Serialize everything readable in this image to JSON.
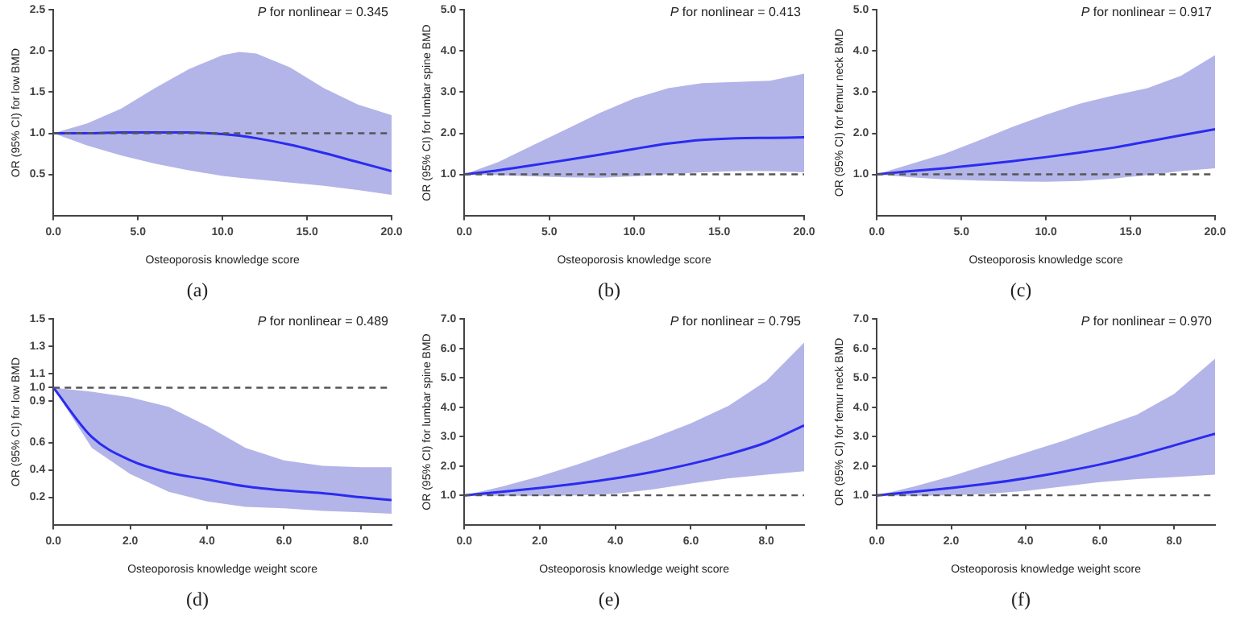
{
  "chart_data": [
    {
      "type": "line",
      "title": "(a)",
      "xlabel": "Osteoporosis knowledge score",
      "ylabel": "OR (95% CI) for low BMD",
      "annotations": [
        "P for nonlinear = 0.345"
      ],
      "xlim": [
        0,
        20
      ],
      "xticks": [
        {
          "value": 0,
          "label": "0.0"
        },
        {
          "value": 5,
          "label": "5.0"
        },
        {
          "value": 10,
          "label": "10.0"
        },
        {
          "value": 15,
          "label": "15.0"
        },
        {
          "value": 20,
          "label": "20.0"
        }
      ],
      "ylim": [
        0,
        2.5
      ],
      "yticks": [
        0.5,
        {
          "value": 1,
          "label": "1.0"
        },
        1.5,
        {
          "value": 2,
          "label": "2.0"
        },
        2.5
      ],
      "grid": false,
      "legend": false,
      "ref_lines": [
        {
          "axis": "y",
          "value": 1,
          "color": "#555555",
          "line_style": "dashed"
        }
      ],
      "series": [
        {
          "color": "#2b2bf2",
          "x": [
            0,
            2,
            4,
            6,
            8,
            10,
            11,
            12,
            14,
            16,
            18,
            20
          ],
          "values": [
            1.0,
            1.0,
            1.01,
            1.01,
            1.01,
            0.99,
            0.97,
            0.94,
            0.86,
            0.76,
            0.65,
            0.54
          ],
          "lower": [
            1.0,
            0.85,
            0.73,
            0.63,
            0.55,
            0.48,
            0.46,
            0.44,
            0.4,
            0.36,
            0.31,
            0.25
          ],
          "upper": [
            1.0,
            1.12,
            1.3,
            1.55,
            1.78,
            1.95,
            1.99,
            1.97,
            1.8,
            1.55,
            1.35,
            1.22
          ]
        }
      ]
    },
    {
      "type": "line",
      "title": "(b)",
      "xlabel": "Osteoporosis knowledge score",
      "ylabel": "OR (95% CI) for lumbar spine BMD",
      "annotations": [
        "P for nonlinear = 0.413"
      ],
      "xlim": [
        0,
        20
      ],
      "xticks": [
        {
          "value": 0,
          "label": "0.0"
        },
        {
          "value": 5,
          "label": "5.0"
        },
        {
          "value": 10,
          "label": "10.0"
        },
        {
          "value": 15,
          "label": "15.0"
        },
        {
          "value": 20,
          "label": "20.0"
        }
      ],
      "ylim": [
        0,
        5
      ],
      "yticks": [
        {
          "value": 1,
          "label": "1.0"
        },
        {
          "value": 2,
          "label": "2.0"
        },
        {
          "value": 3,
          "label": "3.0"
        },
        {
          "value": 4,
          "label": "4.0"
        },
        {
          "value": 5,
          "label": "5.0"
        }
      ],
      "grid": false,
      "legend": false,
      "ref_lines": [
        {
          "axis": "y",
          "value": 1,
          "color": "#555555",
          "line_style": "dashed"
        }
      ],
      "series": [
        {
          "color": "#2b2bf2",
          "x": [
            0,
            2,
            4,
            6,
            8,
            10,
            12,
            14,
            16,
            18,
            20
          ],
          "values": [
            1.0,
            1.1,
            1.22,
            1.35,
            1.48,
            1.62,
            1.75,
            1.84,
            1.88,
            1.89,
            1.9
          ],
          "lower": [
            1.0,
            0.98,
            0.95,
            0.93,
            0.92,
            0.95,
            1.0,
            1.05,
            1.08,
            1.08,
            1.05
          ],
          "upper": [
            1.0,
            1.3,
            1.7,
            2.1,
            2.5,
            2.85,
            3.1,
            3.22,
            3.25,
            3.28,
            3.45
          ]
        }
      ]
    },
    {
      "type": "line",
      "title": "(c)",
      "xlabel": "Osteoporosis knowledge score",
      "ylabel": "OR (95% CI) for femur neck BMD",
      "annotations": [
        "P for nonlinear = 0.917"
      ],
      "xlim": [
        0,
        20
      ],
      "xticks": [
        {
          "value": 0,
          "label": "0.0"
        },
        {
          "value": 5,
          "label": "5.0"
        },
        {
          "value": 10,
          "label": "10.0"
        },
        {
          "value": 15,
          "label": "15.0"
        },
        {
          "value": 20,
          "label": "20.0"
        }
      ],
      "ylim": [
        0,
        5
      ],
      "yticks": [
        {
          "value": 1,
          "label": "1.0"
        },
        {
          "value": 2,
          "label": "2.0"
        },
        {
          "value": 3,
          "label": "3.0"
        },
        {
          "value": 4,
          "label": "4.0"
        },
        {
          "value": 5,
          "label": "5.0"
        }
      ],
      "grid": false,
      "legend": false,
      "ref_lines": [
        {
          "axis": "y",
          "value": 1,
          "color": "#555555",
          "line_style": "dashed"
        }
      ],
      "series": [
        {
          "color": "#2b2bf2",
          "x": [
            0,
            2,
            4,
            6,
            8,
            10,
            12,
            14,
            16,
            18,
            20
          ],
          "values": [
            1.0,
            1.08,
            1.15,
            1.23,
            1.32,
            1.42,
            1.53,
            1.65,
            1.8,
            1.95,
            2.1
          ],
          "lower": [
            1.0,
            0.93,
            0.88,
            0.85,
            0.83,
            0.82,
            0.84,
            0.9,
            0.98,
            1.08,
            1.15
          ],
          "upper": [
            1.0,
            1.25,
            1.5,
            1.82,
            2.15,
            2.45,
            2.72,
            2.92,
            3.1,
            3.4,
            3.9
          ]
        }
      ]
    },
    {
      "type": "line",
      "title": "(d)",
      "xlabel": "Osteoporosis knowledge weight score",
      "ylabel": "OR (95% CI) for low BMD",
      "annotations": [
        "P for nonlinear = 0.489"
      ],
      "xlim": [
        0,
        8.8
      ],
      "xticks": [
        {
          "value": 0,
          "label": "0.0"
        },
        {
          "value": 2,
          "label": "2.0"
        },
        {
          "value": 4,
          "label": "4.0"
        },
        {
          "value": 6,
          "label": "6.0"
        },
        {
          "value": 8,
          "label": "8.0"
        }
      ],
      "ylim": [
        0,
        1.5
      ],
      "yticks": [
        0.2,
        0.4,
        0.6,
        0.9,
        {
          "value": 1,
          "label": "1.0"
        },
        1.1,
        1.3,
        1.5
      ],
      "grid": false,
      "legend": false,
      "ref_lines": [
        {
          "axis": "y",
          "value": 1,
          "color": "#555555",
          "line_style": "dashed"
        }
      ],
      "series": [
        {
          "color": "#2b2bf2",
          "x": [
            0,
            1,
            2,
            3,
            4,
            5,
            6,
            7,
            8,
            8.8
          ],
          "values": [
            1.0,
            0.64,
            0.47,
            0.38,
            0.33,
            0.28,
            0.25,
            0.23,
            0.2,
            0.18
          ],
          "lower": [
            1.0,
            0.56,
            0.37,
            0.24,
            0.17,
            0.13,
            0.12,
            0.1,
            0.09,
            0.08
          ],
          "upper": [
            1.0,
            0.97,
            0.93,
            0.86,
            0.72,
            0.56,
            0.47,
            0.43,
            0.42,
            0.42
          ]
        }
      ]
    },
    {
      "type": "line",
      "title": "(e)",
      "xlabel": "Osteoporosis knowledge weight score",
      "ylabel": "OR (95% CI) for lumbar spine BMD",
      "annotations": [
        "P for nonlinear = 0.795"
      ],
      "xlim": [
        0,
        9
      ],
      "xticks": [
        {
          "value": 0,
          "label": "0.0"
        },
        {
          "value": 2,
          "label": "2.0"
        },
        {
          "value": 4,
          "label": "4.0"
        },
        {
          "value": 6,
          "label": "6.0"
        },
        {
          "value": 8,
          "label": "8.0"
        }
      ],
      "ylim": [
        0,
        7
      ],
      "yticks": [
        {
          "value": 1,
          "label": "1.0"
        },
        {
          "value": 2,
          "label": "2.0"
        },
        {
          "value": 3,
          "label": "3.0"
        },
        {
          "value": 4,
          "label": "4.0"
        },
        {
          "value": 5,
          "label": "5.0"
        },
        {
          "value": 6,
          "label": "6.0"
        },
        {
          "value": 7,
          "label": "7.0"
        }
      ],
      "grid": false,
      "legend": false,
      "ref_lines": [
        {
          "axis": "y",
          "value": 1,
          "color": "#555555",
          "line_style": "dashed"
        }
      ],
      "series": [
        {
          "color": "#2b2bf2",
          "x": [
            0,
            1,
            2,
            3,
            4,
            5,
            6,
            7,
            8,
            9
          ],
          "values": [
            1.0,
            1.12,
            1.25,
            1.4,
            1.58,
            1.8,
            2.07,
            2.4,
            2.8,
            3.38
          ],
          "lower": [
            1.0,
            0.98,
            0.98,
            1.0,
            1.05,
            1.2,
            1.4,
            1.58,
            1.7,
            1.82
          ],
          "upper": [
            1.0,
            1.3,
            1.65,
            2.05,
            2.5,
            2.95,
            3.45,
            4.05,
            4.9,
            6.2
          ]
        }
      ]
    },
    {
      "type": "line",
      "title": "(f)",
      "xlabel": "Osteoporosis knowledge weight score",
      "ylabel": "OR (95% CI) for femur neck BMD",
      "annotations": [
        "P for nonlinear = 0.970"
      ],
      "xlim": [
        0,
        9.1
      ],
      "xticks": [
        {
          "value": 0,
          "label": "0.0"
        },
        {
          "value": 2,
          "label": "2.0"
        },
        {
          "value": 4,
          "label": "4.0"
        },
        {
          "value": 6,
          "label": "6.0"
        },
        {
          "value": 8,
          "label": "8.0"
        }
      ],
      "ylim": [
        0,
        7
      ],
      "yticks": [
        {
          "value": 1,
          "label": "1.0"
        },
        {
          "value": 2,
          "label": "2.0"
        },
        {
          "value": 3,
          "label": "3.0"
        },
        {
          "value": 4,
          "label": "4.0"
        },
        {
          "value": 5,
          "label": "5.0"
        },
        {
          "value": 6,
          "label": "6.0"
        },
        {
          "value": 7,
          "label": "7.0"
        }
      ],
      "grid": false,
      "legend": false,
      "ref_lines": [
        {
          "axis": "y",
          "value": 1,
          "color": "#555555",
          "line_style": "dashed"
        }
      ],
      "series": [
        {
          "color": "#2b2bf2",
          "x": [
            0,
            1,
            2,
            3,
            4,
            5,
            6,
            7,
            8,
            9.1
          ],
          "values": [
            1.0,
            1.12,
            1.25,
            1.4,
            1.58,
            1.8,
            2.05,
            2.35,
            2.7,
            3.1
          ],
          "lower": [
            1.0,
            0.98,
            1.0,
            1.05,
            1.15,
            1.3,
            1.45,
            1.55,
            1.62,
            1.7
          ],
          "upper": [
            1.0,
            1.3,
            1.65,
            2.05,
            2.45,
            2.85,
            3.3,
            3.75,
            4.45,
            5.65
          ]
        }
      ]
    }
  ]
}
